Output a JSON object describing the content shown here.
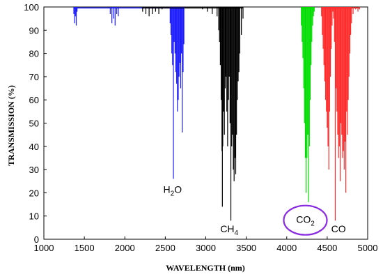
{
  "chart_data": {
    "type": "line",
    "title": "",
    "xlabel": "WAVELENGTH (nm)",
    "ylabel": "TRANSMISSION (%)",
    "xlim": [
      1000,
      5000
    ],
    "ylim": [
      0,
      100
    ],
    "x_ticks": [
      1000,
      1500,
      2000,
      2500,
      3000,
      3500,
      4000,
      4500,
      5000
    ],
    "y_ticks": [
      0,
      10,
      20,
      30,
      40,
      50,
      60,
      70,
      80,
      90,
      100
    ],
    "grid": false,
    "legend": "none",
    "series": [
      {
        "color": "#1a1aff",
        "label_main": "H",
        "label_sub": "2",
        "label_tail": "O",
        "label_pos": [
          2590,
          20
        ],
        "lines": [
          [
            1370,
            97
          ],
          [
            1380,
            93
          ],
          [
            1390,
            96
          ],
          [
            1400,
            92
          ],
          [
            1410,
            98
          ],
          [
            1820,
            97
          ],
          [
            1840,
            93
          ],
          [
            1860,
            95
          ],
          [
            1880,
            92
          ],
          [
            1900,
            97
          ],
          [
            1920,
            96
          ],
          [
            2560,
            93
          ],
          [
            2570,
            88
          ],
          [
            2580,
            80
          ],
          [
            2590,
            75
          ],
          [
            2600,
            26
          ],
          [
            2610,
            85
          ],
          [
            2620,
            80
          ],
          [
            2630,
            72
          ],
          [
            2640,
            67
          ],
          [
            2650,
            55
          ],
          [
            2660,
            60
          ],
          [
            2670,
            70
          ],
          [
            2680,
            76
          ],
          [
            2690,
            65
          ],
          [
            2700,
            80
          ],
          [
            2710,
            46
          ],
          [
            2720,
            72
          ],
          [
            2730,
            84
          ]
        ]
      },
      {
        "color": "#000000",
        "label_main": "CH",
        "label_sub": "4",
        "label_tail": "",
        "label_pos": [
          3290,
          3
        ],
        "lines": [
          [
            2220,
            98
          ],
          [
            2260,
            97
          ],
          [
            2300,
            96
          ],
          [
            2340,
            97
          ],
          [
            2380,
            98
          ],
          [
            2420,
            97
          ],
          [
            2460,
            99
          ],
          [
            2960,
            99
          ],
          [
            3020,
            98
          ],
          [
            3080,
            97
          ],
          [
            3140,
            96
          ],
          [
            3160,
            90
          ],
          [
            3170,
            85
          ],
          [
            3180,
            75
          ],
          [
            3190,
            60
          ],
          [
            3200,
            38
          ],
          [
            3205,
            14
          ],
          [
            3210,
            40
          ],
          [
            3220,
            55
          ],
          [
            3230,
            45
          ],
          [
            3240,
            65
          ],
          [
            3250,
            70
          ],
          [
            3260,
            55
          ],
          [
            3270,
            40
          ],
          [
            3280,
            60
          ],
          [
            3290,
            70
          ],
          [
            3300,
            50
          ],
          [
            3310,
            8
          ],
          [
            3320,
            40
          ],
          [
            3330,
            45
          ],
          [
            3340,
            30
          ],
          [
            3350,
            25
          ],
          [
            3360,
            35
          ],
          [
            3370,
            28
          ],
          [
            3380,
            45
          ],
          [
            3390,
            60
          ],
          [
            3400,
            68
          ],
          [
            3410,
            72
          ],
          [
            3420,
            80
          ],
          [
            3440,
            88
          ],
          [
            3460,
            95
          ]
        ]
      },
      {
        "color": "#00dd00",
        "label_main": "",
        "label_sub": "",
        "label_tail": "",
        "label_pos": [
          0,
          0
        ],
        "lines": [
          [
            4180,
            92
          ],
          [
            4190,
            85
          ],
          [
            4200,
            78
          ],
          [
            4210,
            65
          ],
          [
            4220,
            50
          ],
          [
            4230,
            35
          ],
          [
            4240,
            20
          ],
          [
            4250,
            35
          ],
          [
            4260,
            45
          ],
          [
            4270,
            16
          ],
          [
            4280,
            40
          ],
          [
            4290,
            60
          ],
          [
            4300,
            75
          ],
          [
            4310,
            85
          ],
          [
            4320,
            92
          ],
          [
            4330,
            96
          ],
          [
            4340,
            98
          ]
        ]
      },
      {
        "color": "#ff2a2a",
        "label_main": "CO",
        "label_sub": "",
        "label_tail": "",
        "label_pos": [
          4640,
          3
        ],
        "lines": [
          [
            4430,
            96
          ],
          [
            4440,
            88
          ],
          [
            4450,
            82
          ],
          [
            4460,
            75
          ],
          [
            4470,
            68
          ],
          [
            4480,
            60
          ],
          [
            4490,
            55
          ],
          [
            4500,
            48
          ],
          [
            4510,
            40
          ],
          [
            4520,
            30
          ],
          [
            4530,
            55
          ],
          [
            4540,
            70
          ],
          [
            4550,
            82
          ],
          [
            4560,
            92
          ],
          [
            4570,
            98
          ],
          [
            4580,
            95
          ],
          [
            4590,
            85
          ],
          [
            4600,
            8
          ],
          [
            4610,
            65
          ],
          [
            4620,
            55
          ],
          [
            4630,
            45
          ],
          [
            4640,
            35
          ],
          [
            4650,
            40
          ],
          [
            4660,
            25
          ],
          [
            4670,
            50
          ],
          [
            4680,
            45
          ],
          [
            4690,
            35
          ],
          [
            4700,
            38
          ],
          [
            4710,
            30
          ],
          [
            4720,
            42
          ],
          [
            4730,
            20
          ],
          [
            4740,
            55
          ],
          [
            4750,
            45
          ],
          [
            4760,
            60
          ],
          [
            4770,
            70
          ],
          [
            4780,
            80
          ],
          [
            4790,
            88
          ],
          [
            4800,
            93
          ],
          [
            4820,
            97
          ],
          [
            4850,
            99
          ],
          [
            4880,
            98
          ],
          [
            4900,
            99
          ]
        ]
      }
    ],
    "annotations": [
      {
        "label_main": "CO",
        "label_sub": "2",
        "pos": [
          4230,
          7
        ],
        "circled": true,
        "circle_color": "#8a2be2"
      }
    ]
  }
}
